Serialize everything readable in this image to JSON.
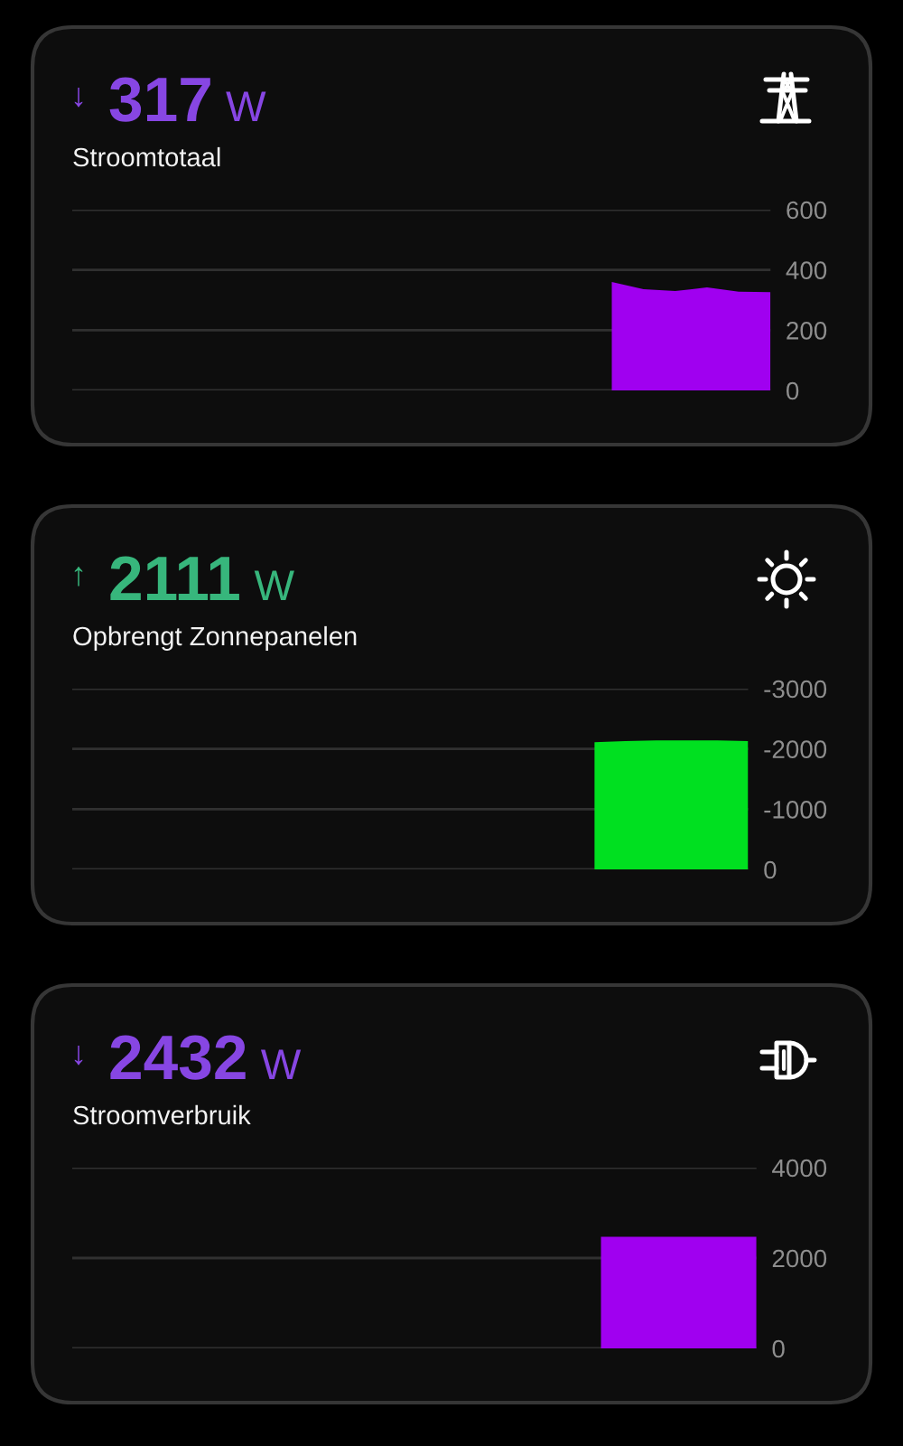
{
  "chart_data": [
    {
      "type": "area",
      "title": "317",
      "subtitle": "Stroomtotaal",
      "annotations": [
        "↓",
        "W"
      ],
      "categories": [
        null,
        null,
        null,
        null,
        null,
        null,
        null,
        null,
        null,
        null,
        null,
        null,
        null,
        null,
        null,
        null,
        null,
        null,
        null,
        null,
        null,
        null,
        null
      ],
      "values": [
        null,
        null,
        null,
        null,
        null,
        null,
        null,
        null,
        null,
        null,
        null,
        null,
        null,
        null,
        null,
        null,
        null,
        360,
        336,
        330,
        342,
        328,
        326
      ],
      "color": "#a000f0",
      "ylim": [
        0,
        600
      ],
      "yticks": [
        0,
        200,
        400,
        600
      ],
      "grid": "y",
      "tick_labels": "y"
    },
    {
      "type": "area",
      "title": "2111",
      "subtitle": "Opbrengt Zonnepanelen",
      "annotations": [
        "↑",
        "W"
      ],
      "categories": [
        null,
        null,
        null,
        null,
        null,
        null,
        null,
        null,
        null,
        null,
        null,
        null,
        null,
        null,
        null,
        null,
        null,
        null,
        null,
        null,
        null,
        null,
        null
      ],
      "values": [
        null,
        null,
        null,
        null,
        null,
        null,
        null,
        null,
        null,
        null,
        null,
        null,
        null,
        null,
        null,
        null,
        null,
        -2110,
        -2130,
        -2140,
        -2140,
        -2140,
        -2130
      ],
      "color": "#00e020",
      "ylim": [
        0,
        -3000
      ],
      "yticks": [
        0,
        -1000,
        -2000,
        -3000
      ],
      "grid": "y",
      "tick_labels": "y"
    },
    {
      "type": "area",
      "title": "2432",
      "subtitle": "Stroomverbruik",
      "annotations": [
        "↓",
        "W"
      ],
      "categories": [
        null,
        null,
        null,
        null,
        null,
        null,
        null,
        null,
        null,
        null,
        null,
        null,
        null,
        null,
        null,
        null,
        null,
        null,
        null,
        null,
        null,
        null,
        null
      ],
      "values": [
        null,
        null,
        null,
        null,
        null,
        null,
        null,
        null,
        null,
        null,
        null,
        null,
        null,
        null,
        null,
        null,
        null,
        2470,
        2470,
        2470,
        2470,
        2470,
        2470
      ],
      "color": "#a000f0",
      "ylim": [
        0,
        4000
      ],
      "yticks": [
        0,
        2000,
        4000
      ],
      "grid": "y",
      "tick_labels": "y"
    }
  ]
}
